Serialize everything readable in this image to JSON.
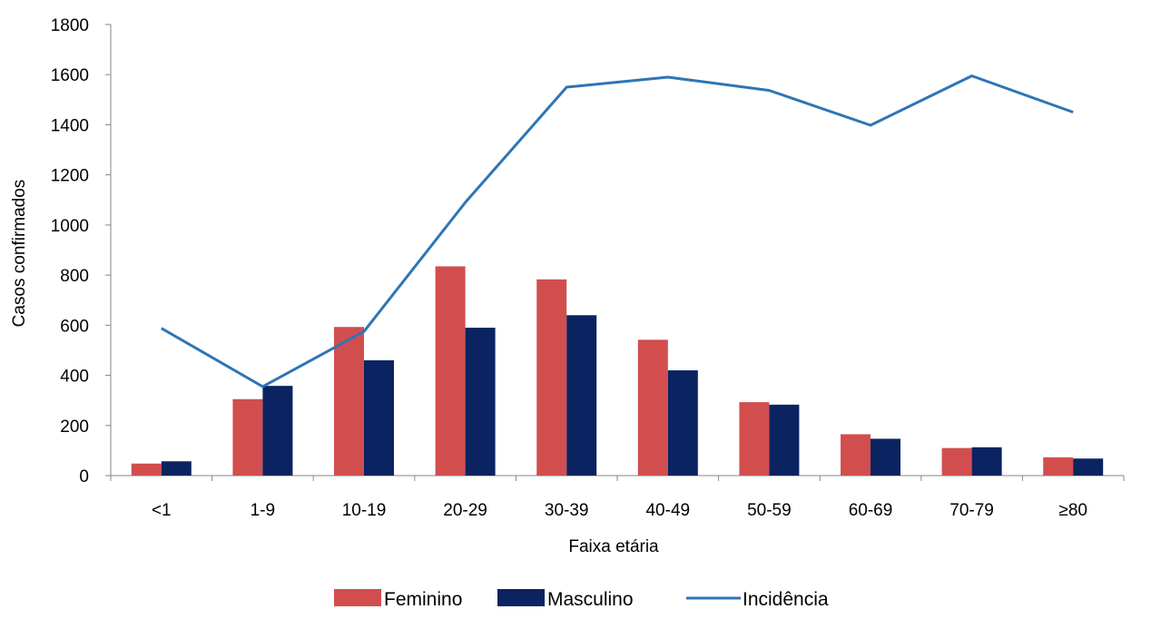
{
  "chart_data": {
    "type": "bar",
    "categories": [
      "<1",
      "1-9",
      "10-19",
      "20-29",
      "30-39",
      "40-49",
      "50-59",
      "60-69",
      "70-79",
      "≥80"
    ],
    "series": [
      {
        "name": "Feminino",
        "type": "bar",
        "color": "#d24e4e",
        "values": [
          48,
          305,
          593,
          835,
          783,
          542,
          293,
          165,
          110,
          73
        ]
      },
      {
        "name": "Masculino",
        "type": "bar",
        "color": "#0b2360",
        "values": [
          57,
          358,
          460,
          590,
          640,
          420,
          283,
          147,
          113,
          68
        ]
      },
      {
        "name": "Incidência",
        "type": "line",
        "color": "#2e75b6",
        "values": [
          588,
          355,
          575,
          1090,
          1550,
          1590,
          1537,
          1398,
          1595,
          1450
        ]
      }
    ],
    "title": "",
    "xlabel": "Faixa etária",
    "ylabel": "Casos confirmados",
    "ylim": [
      0,
      1800
    ],
    "yticks": [
      0,
      200,
      400,
      600,
      800,
      1000,
      1200,
      1400,
      1600,
      1800
    ],
    "grid": false,
    "legend_position": "bottom"
  }
}
